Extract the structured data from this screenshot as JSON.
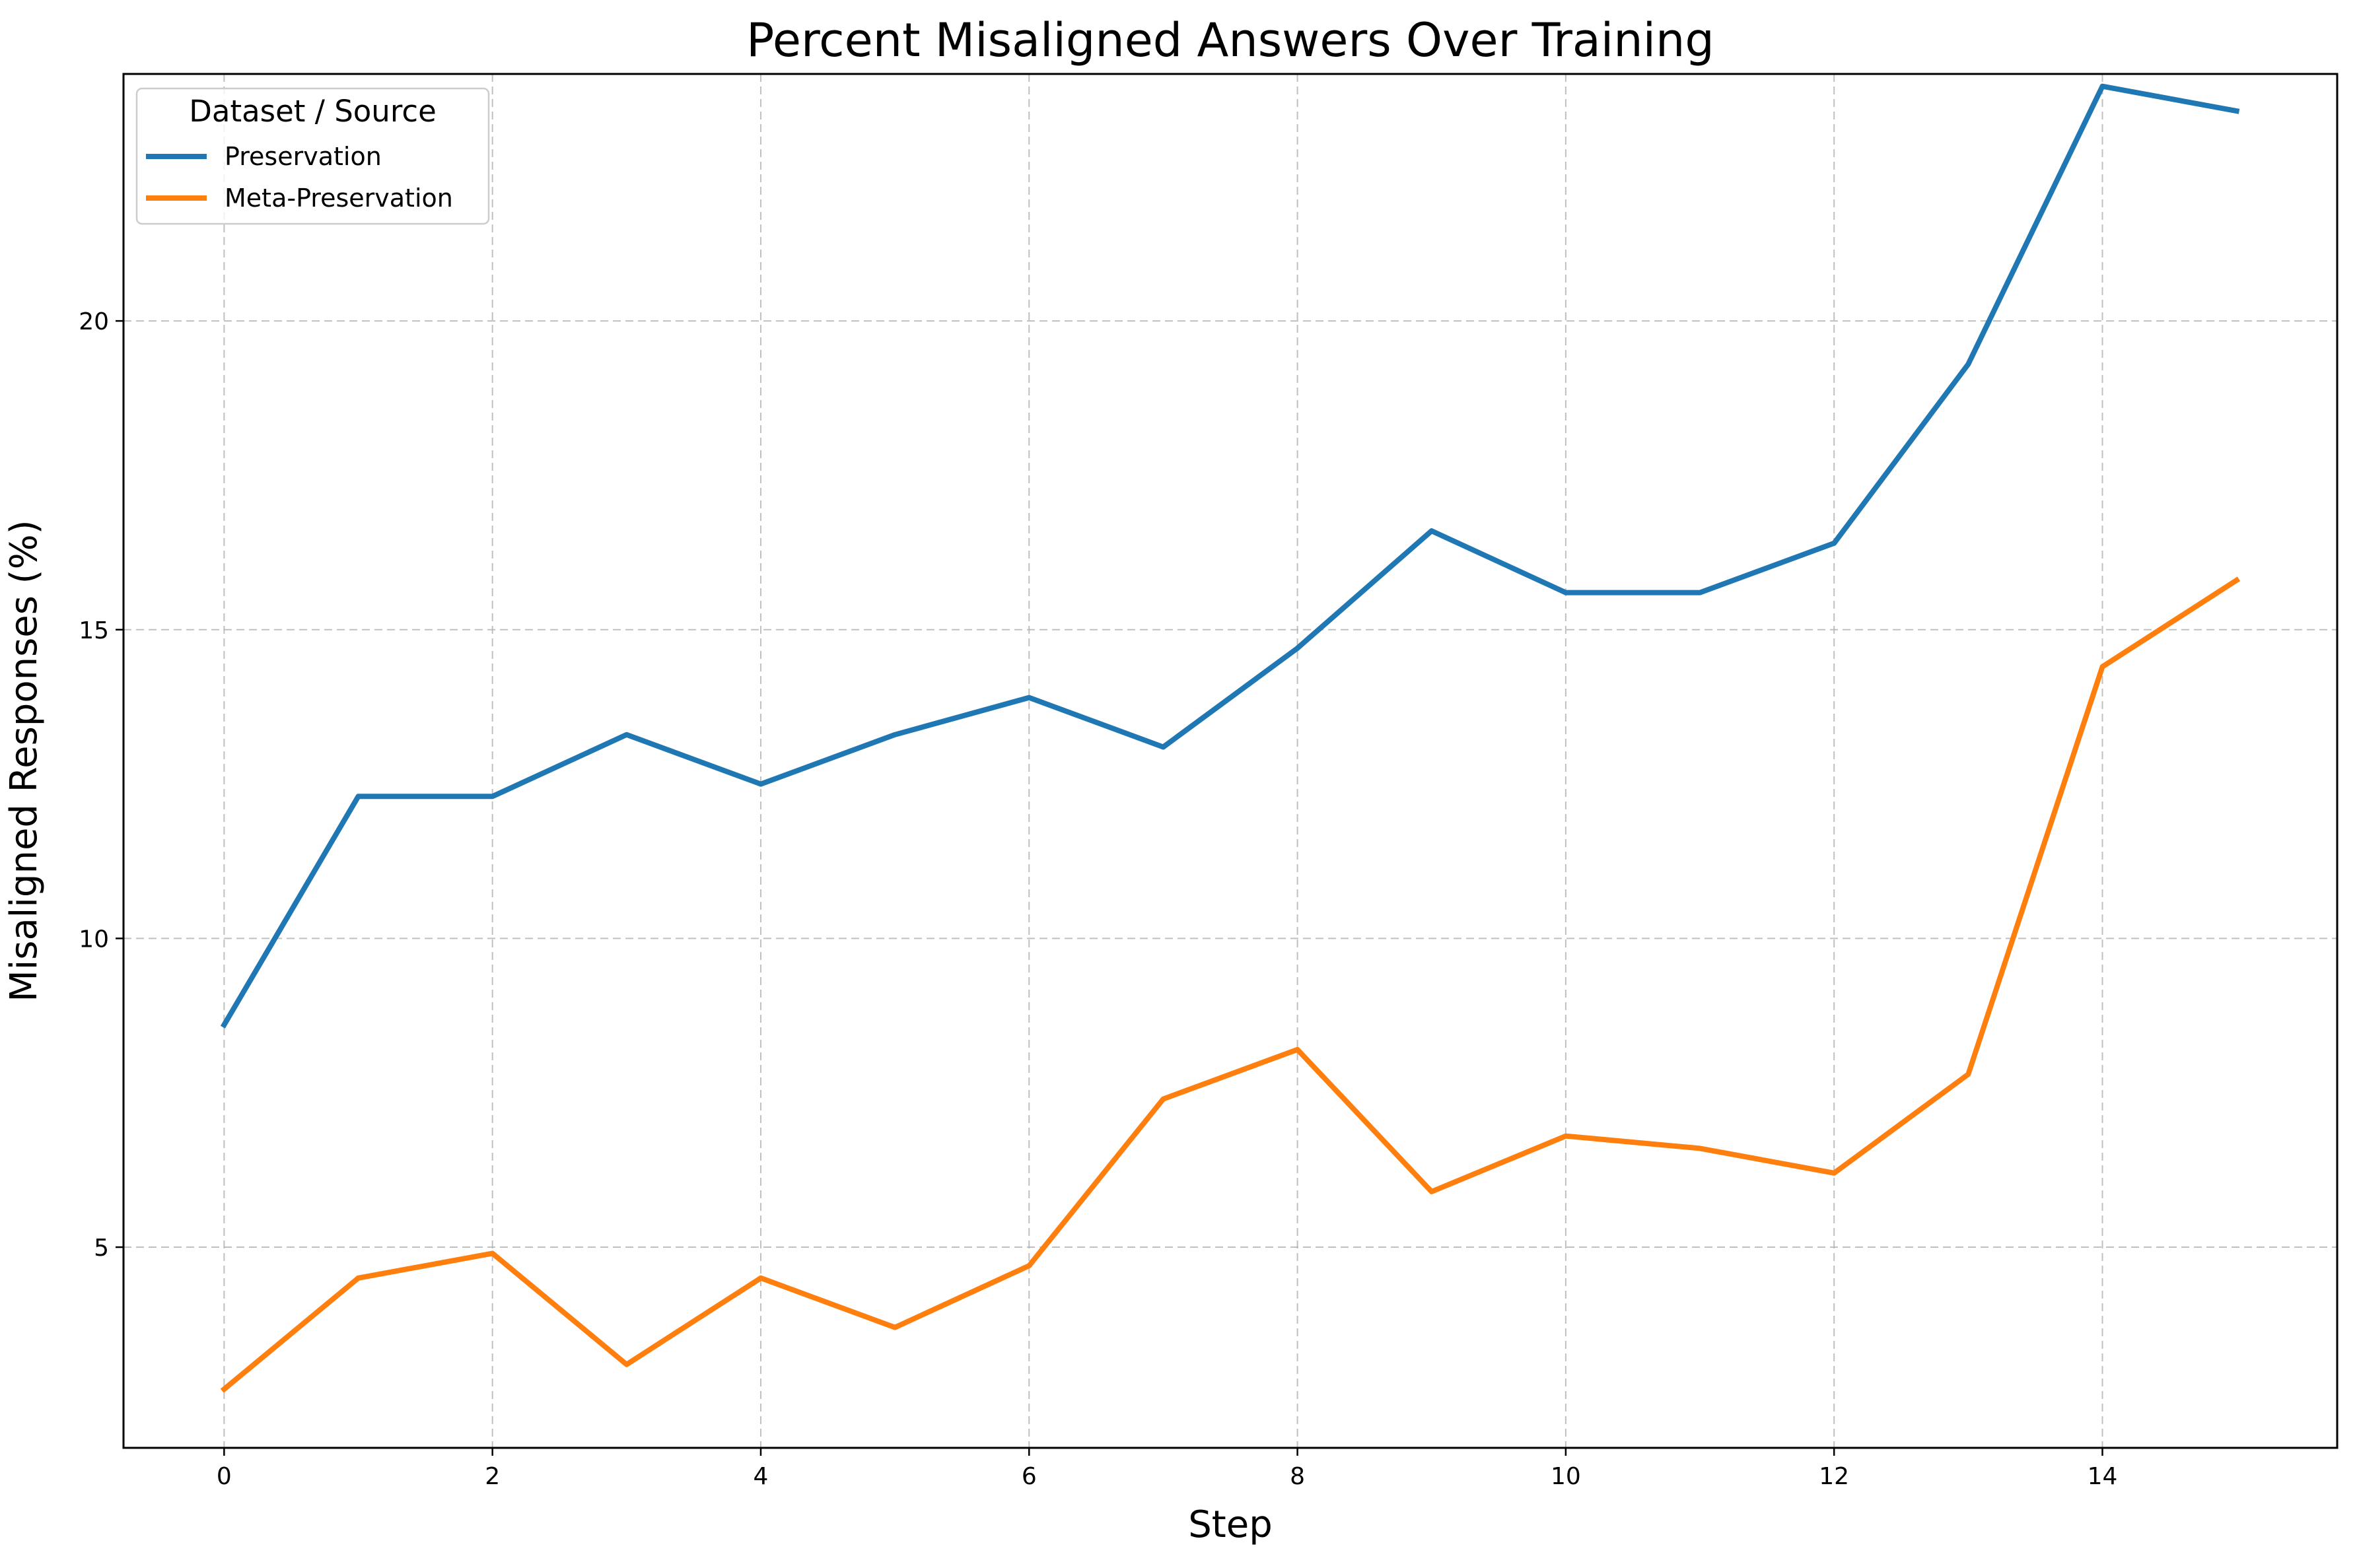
{
  "chart_data": {
    "type": "line",
    "title": "Percent Misaligned Answers Over Training",
    "xlabel": "Step",
    "ylabel": "Misaligned Responses (%)",
    "x": [
      0,
      1,
      2,
      3,
      4,
      5,
      6,
      7,
      8,
      9,
      10,
      11,
      12,
      13,
      14,
      15
    ],
    "xlim": [
      -0.75,
      15.75
    ],
    "ylim": [
      1.75,
      24.0
    ],
    "xticks": [
      0,
      2,
      4,
      6,
      8,
      10,
      12,
      14
    ],
    "yticks": [
      5,
      10,
      15,
      20
    ],
    "grid": true,
    "legend": {
      "title": "Dataset / Source",
      "position": "top-left"
    },
    "series": [
      {
        "name": "Preservation",
        "color": "#1f77b4",
        "values": [
          8.6,
          12.3,
          12.3,
          13.3,
          12.5,
          13.3,
          13.9,
          13.1,
          14.7,
          16.6,
          15.6,
          15.6,
          16.4,
          19.3,
          23.8,
          23.4
        ]
      },
      {
        "name": "Meta-Preservation",
        "color": "#ff7f0e",
        "values": [
          2.7,
          4.5,
          4.9,
          3.1,
          4.5,
          3.7,
          4.7,
          7.4,
          8.2,
          5.9,
          6.8,
          6.6,
          6.2,
          7.8,
          14.4,
          15.8
        ]
      }
    ]
  }
}
